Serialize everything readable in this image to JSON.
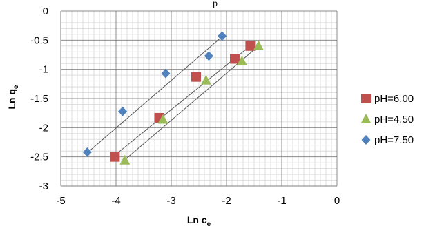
{
  "top_text": "p",
  "chart_data": {
    "type": "scatter",
    "title": "",
    "xlabel": "Ln c",
    "xlabel_sub": "e",
    "ylabel": "Ln q",
    "ylabel_sub": "e",
    "xlim": [
      -5,
      0
    ],
    "ylim": [
      -3,
      0
    ],
    "x_ticks": [
      -5,
      -4,
      -3,
      -2,
      -1,
      0
    ],
    "y_ticks": [
      0,
      -0.5,
      -1,
      -1.5,
      -2,
      -2.5,
      -3
    ],
    "x_tick_labels": [
      "-5",
      "-4",
      "-3",
      "-2",
      "-1",
      "0"
    ],
    "y_tick_labels": [
      "0",
      "-0.5",
      "-1",
      "-1.5",
      "-2",
      "-2.5",
      "-3"
    ],
    "minor_grid": true,
    "grid": true,
    "legend_position": "right",
    "series": [
      {
        "name": "pH=6.00",
        "marker": "square",
        "color": "#c0504d",
        "x": [
          -4.02,
          -3.22,
          -2.55,
          -1.85,
          -1.57
        ],
        "y": [
          -2.5,
          -1.83,
          -1.13,
          -0.82,
          -0.6
        ],
        "trendline": [
          [
            -4.02,
            -2.47
          ],
          [
            -1.52,
            -0.56
          ]
        ]
      },
      {
        "name": "pH=4.50",
        "marker": "triangle",
        "color": "#9bbb59",
        "x": [
          -3.84,
          -3.15,
          -2.37,
          -1.72,
          -1.42
        ],
        "y": [
          -2.56,
          -1.86,
          -1.19,
          -0.86,
          -0.6
        ],
        "trendline": [
          [
            -3.84,
            -2.55
          ],
          [
            -1.42,
            -0.6
          ]
        ]
      },
      {
        "name": "pH=7.50",
        "marker": "diamond",
        "color": "#4f81bd",
        "x": [
          -4.52,
          -3.88,
          -3.1,
          -2.32,
          -2.08
        ],
        "y": [
          -2.42,
          -1.72,
          -1.07,
          -0.77,
          -0.43
        ],
        "trendline": [
          [
            -4.52,
            -2.43
          ],
          [
            -2.08,
            -0.44
          ]
        ]
      }
    ]
  }
}
